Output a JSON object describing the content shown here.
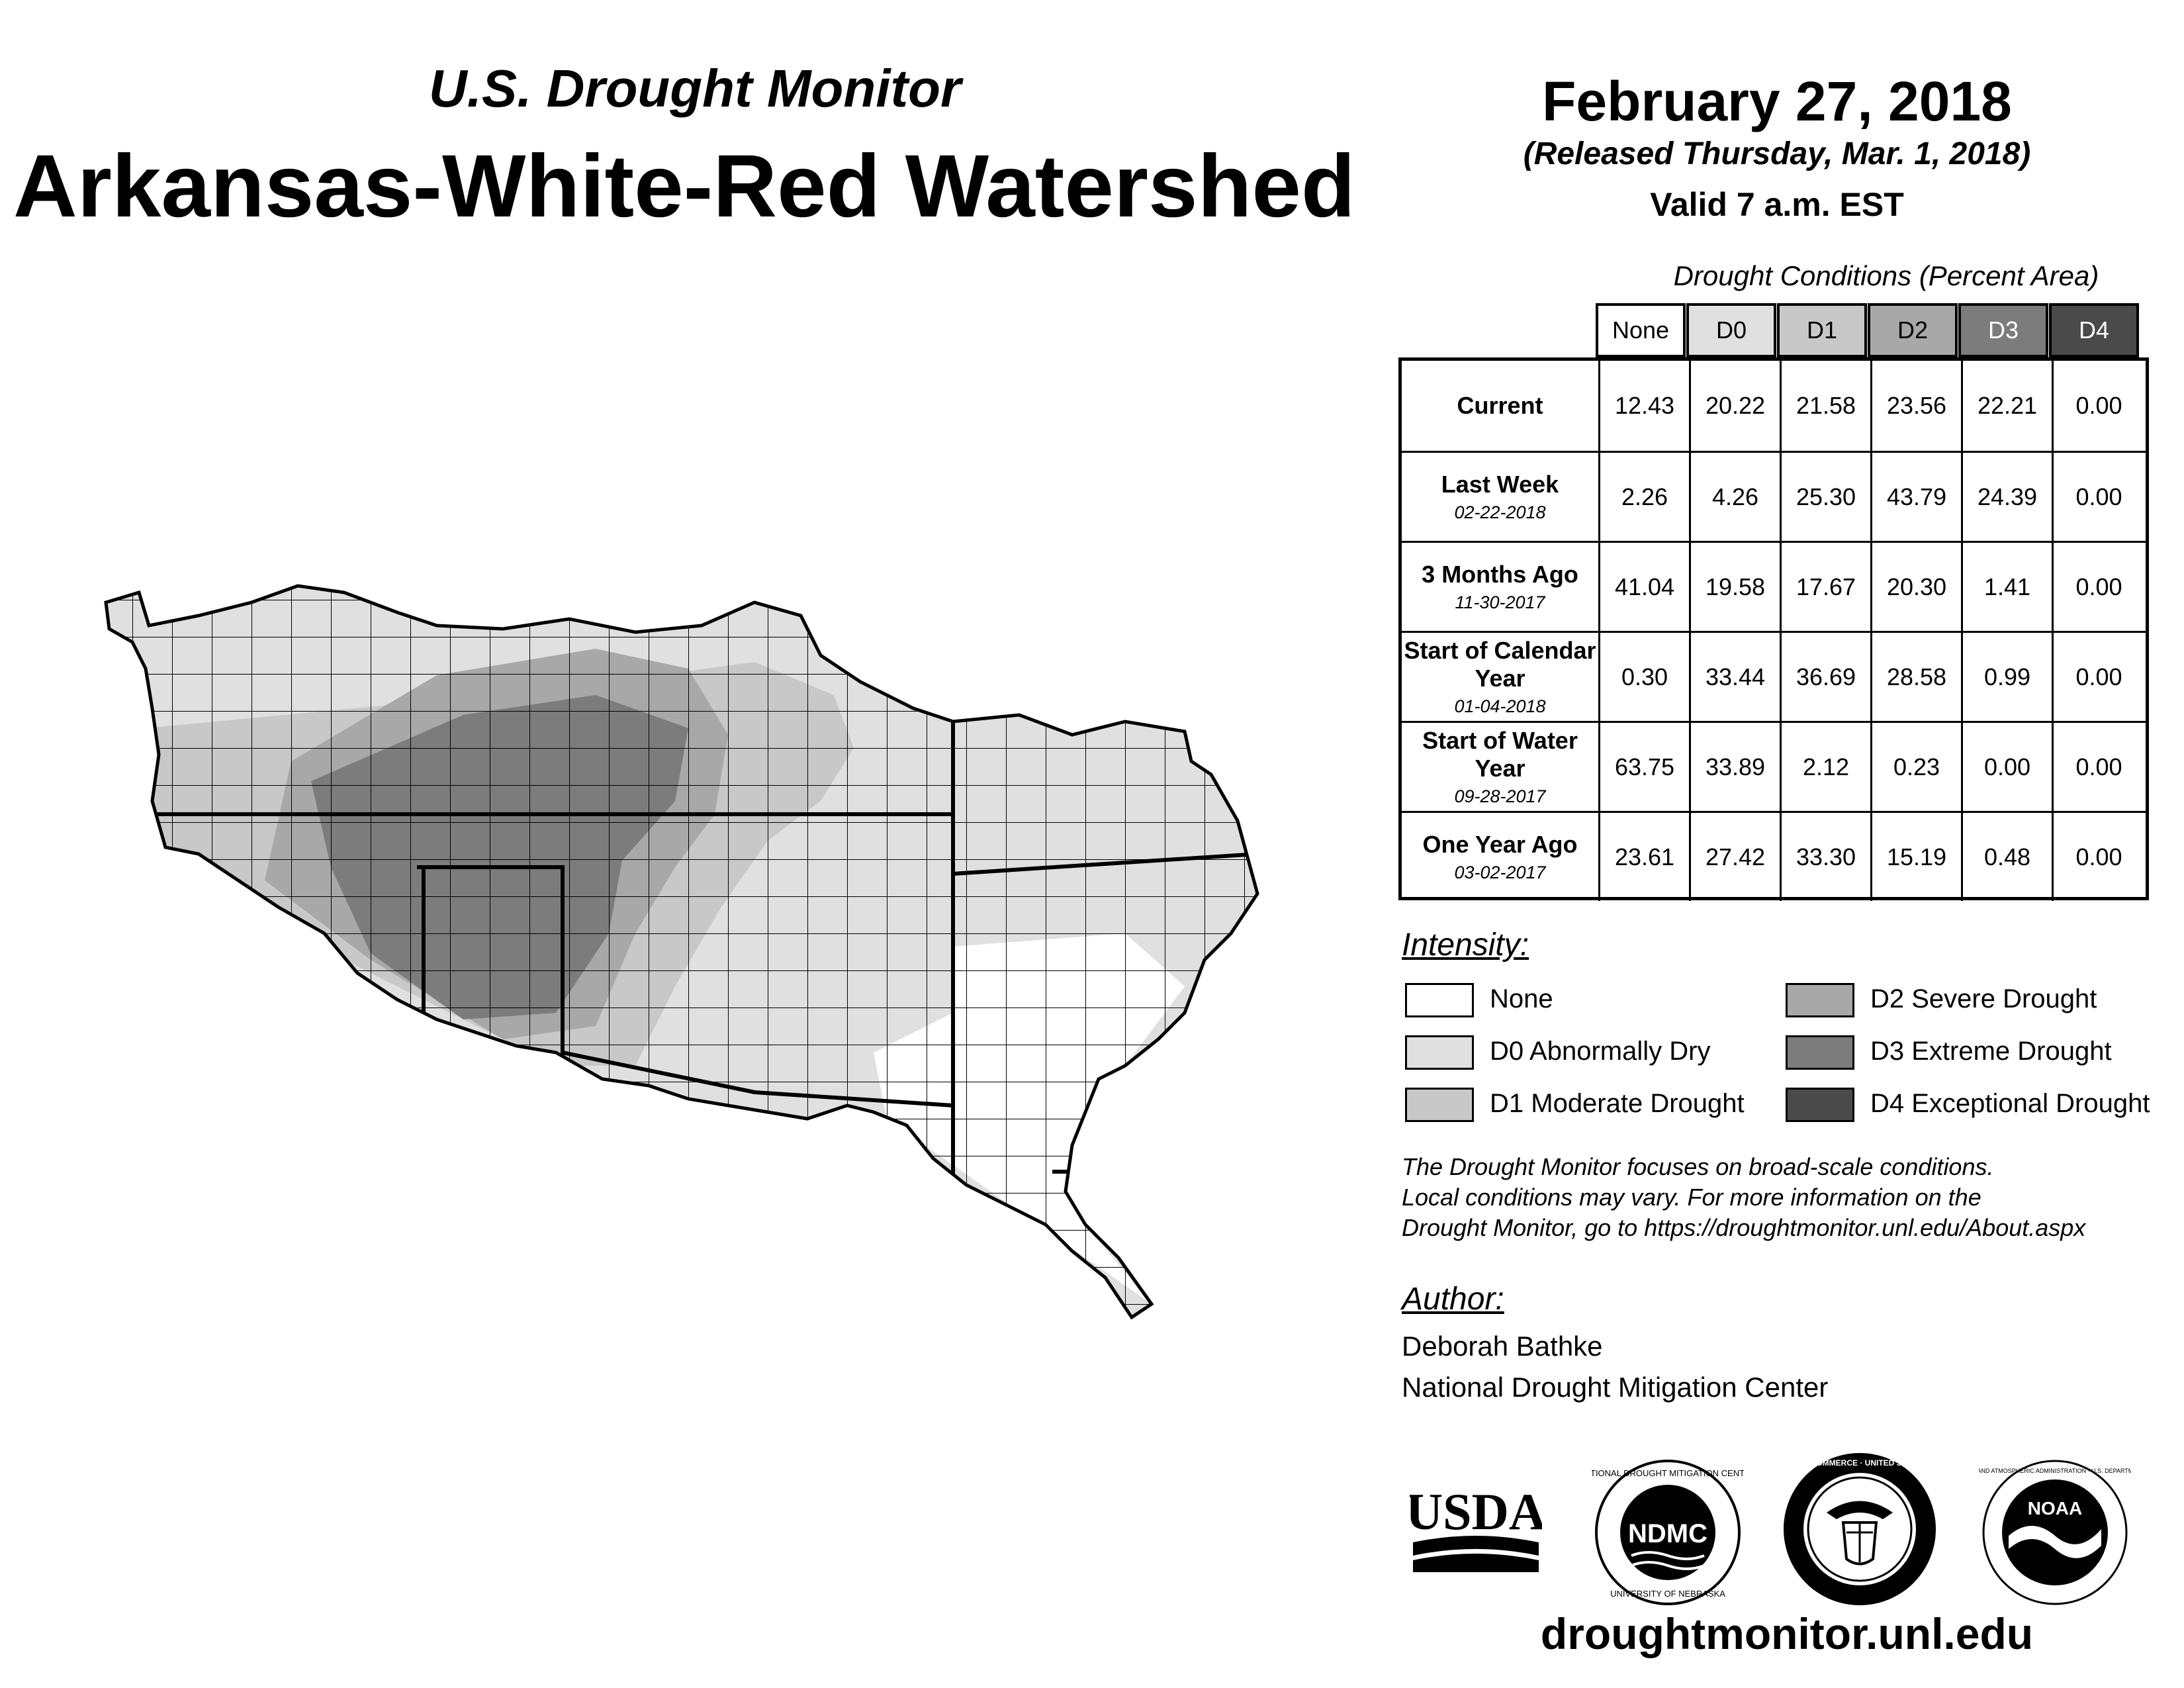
{
  "header": {
    "subtitle": "U.S. Drought Monitor",
    "title": "Arkansas-White-Red Watershed",
    "date": "February 27, 2018",
    "released": "(Released Thursday, Mar. 1, 2018)",
    "valid": "Valid 7 a.m. EST"
  },
  "table": {
    "caption": "Drought Conditions (Percent Area)",
    "columns": [
      "None",
      "D0",
      "D1",
      "D2",
      "D3",
      "D4"
    ],
    "column_colors": [
      "#ffffff",
      "#e0e0e0",
      "#c8c8c8",
      "#a8a8a8",
      "#7c7c7c",
      "#4a4a4a"
    ],
    "rows": [
      {
        "label": "Current",
        "date": "",
        "values": [
          "12.43",
          "20.22",
          "21.58",
          "23.56",
          "22.21",
          "0.00"
        ]
      },
      {
        "label": "Last Week",
        "date": "02-22-2018",
        "values": [
          "2.26",
          "4.26",
          "25.30",
          "43.79",
          "24.39",
          "0.00"
        ]
      },
      {
        "label": "3 Months Ago",
        "date": "11-30-2017",
        "values": [
          "41.04",
          "19.58",
          "17.67",
          "20.30",
          "1.41",
          "0.00"
        ]
      },
      {
        "label": "Start of Calendar Year",
        "date": "01-04-2018",
        "values": [
          "0.30",
          "33.44",
          "36.69",
          "28.58",
          "0.99",
          "0.00"
        ]
      },
      {
        "label": "Start of Water Year",
        "date": "09-28-2017",
        "values": [
          "63.75",
          "33.89",
          "2.12",
          "0.23",
          "0.00",
          "0.00"
        ]
      },
      {
        "label": "One Year Ago",
        "date": "03-02-2017",
        "values": [
          "23.61",
          "27.42",
          "33.30",
          "15.19",
          "0.48",
          "0.00"
        ]
      }
    ]
  },
  "legend": {
    "title": "Intensity:",
    "items": [
      {
        "label": "None",
        "color": "#ffffff"
      },
      {
        "label": "D0 Abnormally Dry",
        "color": "#e0e0e0"
      },
      {
        "label": "D1 Moderate Drought",
        "color": "#c8c8c8"
      },
      {
        "label": "D2 Severe Drought",
        "color": "#a8a8a8"
      },
      {
        "label": "D3 Extreme Drought",
        "color": "#7c7c7c"
      },
      {
        "label": "D4 Exceptional Drought",
        "color": "#4a4a4a"
      }
    ]
  },
  "note": {
    "line1": "The Drought Monitor focuses on broad-scale conditions.",
    "line2": "Local conditions may vary. For more information on the",
    "line3": "Drought Monitor, go to https://droughtmonitor.unl.edu/About.aspx"
  },
  "author": {
    "title": "Author:",
    "name": "Deborah Bathke",
    "org": "National Drought Mitigation Center"
  },
  "logos": {
    "usda": "USDA",
    "ndmc": "NDMC",
    "ndmc_ring_top": "NATIONAL DROUGHT MITIGATION CENTER",
    "ndmc_ring_bottom": "UNIVERSITY OF NEBRASKA",
    "doc_ring": "DEPARTMENT OF COMMERCE · UNITED STATES OF AMERICA",
    "noaa": "NOAA",
    "noaa_ring": "NATIONAL OCEANIC AND ATMOSPHERIC ADMINISTRATION · U.S. DEPARTMENT OF COMMERCE"
  },
  "url": "droughtmonitor.unl.edu"
}
